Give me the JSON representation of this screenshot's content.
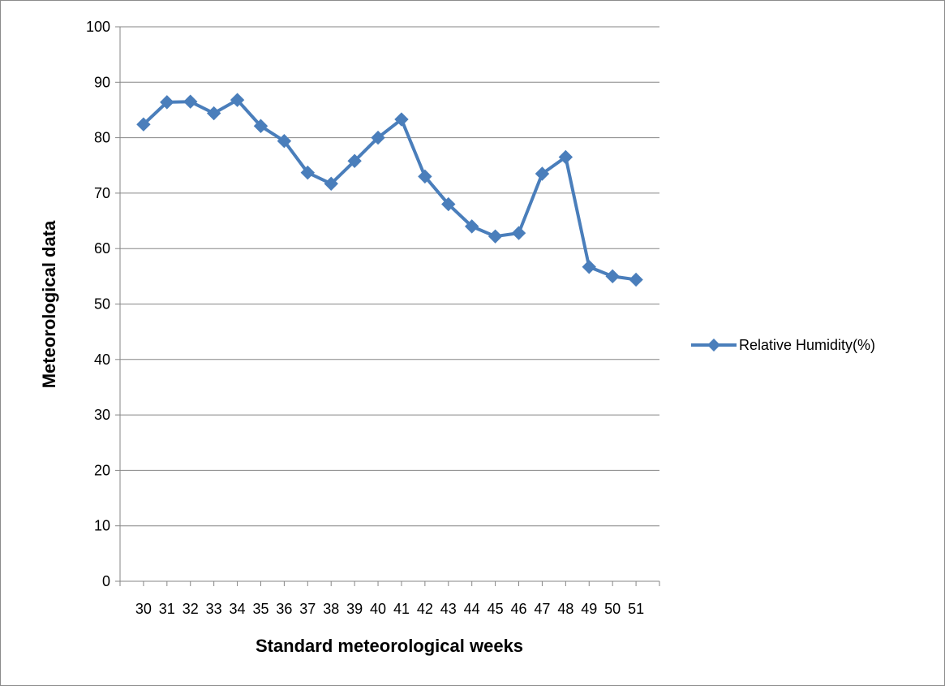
{
  "chart_data": {
    "type": "line",
    "title": "",
    "xlabel": "Standard meteorological weeks",
    "ylabel": "Meteorological data",
    "ylim": [
      0,
      100
    ],
    "yticks": [
      0,
      10,
      20,
      30,
      40,
      50,
      60,
      70,
      80,
      90,
      100
    ],
    "grid": true,
    "legend_position": "right",
    "categories": [
      "30",
      "31",
      "32",
      "33",
      "34",
      "35",
      "36",
      "37",
      "38",
      "39",
      "40",
      "41",
      "42",
      "43",
      "44",
      "45",
      "46",
      "47",
      "48",
      "49",
      "50",
      "51"
    ],
    "series": [
      {
        "name": "Relative Humidity(%)",
        "color": "#4a7ebb",
        "marker": "diamond",
        "values": [
          82.4,
          86.4,
          86.5,
          84.4,
          86.8,
          82.1,
          79.4,
          73.7,
          71.7,
          75.8,
          80.0,
          83.3,
          73.0,
          68.0,
          64.0,
          62.2,
          62.8,
          73.5,
          76.5,
          56.7,
          55.0,
          54.4
        ]
      }
    ]
  }
}
